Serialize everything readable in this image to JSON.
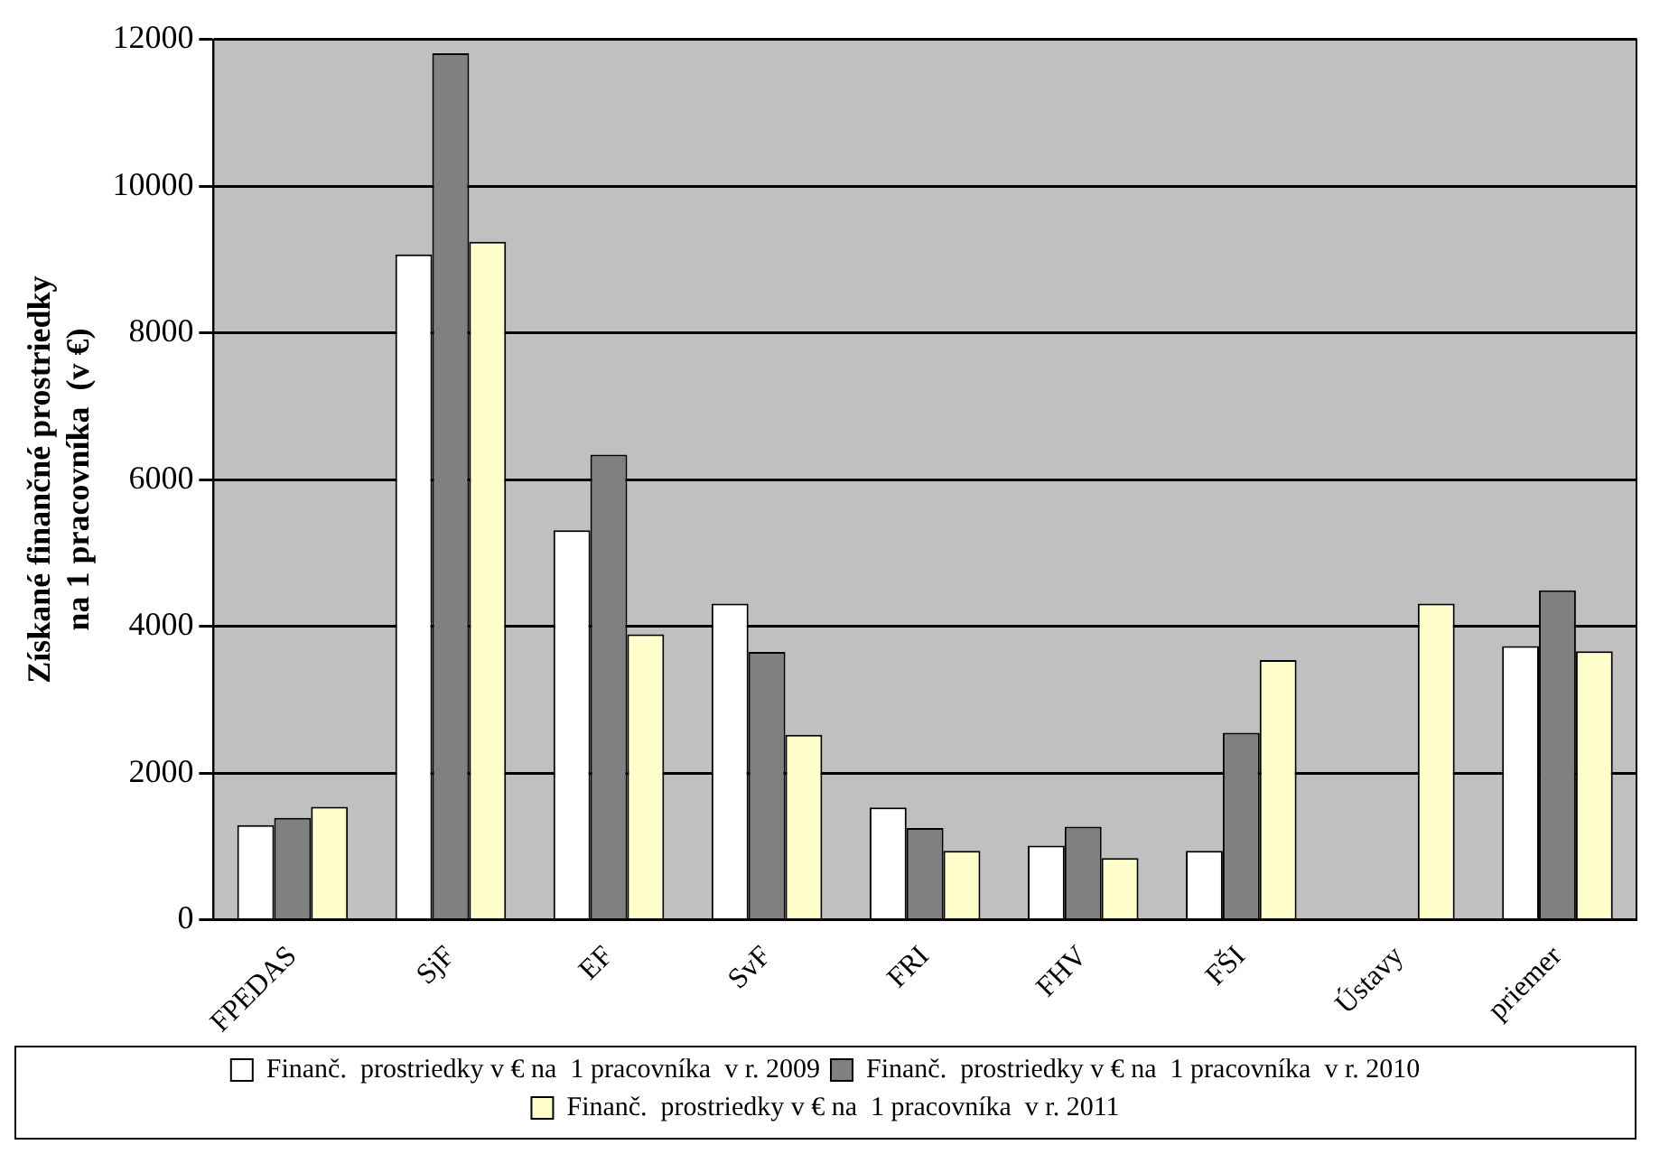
{
  "chart_data": {
    "type": "bar",
    "ylabel": "Získané finančné prostriedky\nna 1 pracovníka  (v €)",
    "categories": [
      "FPEDAS",
      "SjF",
      "EF",
      "SvF",
      "FRI",
      "FHV",
      "FŠI",
      "Ústavy",
      "priemer"
    ],
    "series": [
      {
        "name": "Finanč.  prostriedky v € na  1 pracovníka  v r. 2009",
        "color": "#ffffff",
        "values": [
          1290,
          9070,
          5310,
          4310,
          1530,
          1010,
          940,
          0,
          3730
        ]
      },
      {
        "name": "Finanč.  prostriedky v € na  1 pracovníka  v r. 2010",
        "color": "#808080",
        "values": [
          1390,
          11810,
          6340,
          3650,
          1250,
          1270,
          2550,
          0,
          4490
        ]
      },
      {
        "name": "Finanč.  prostriedky v € na  1 pracovníka  v r. 2011",
        "color": "#ffffcc",
        "values": [
          1540,
          9240,
          3890,
          2520,
          940,
          840,
          3540,
          4310,
          3660
        ]
      }
    ],
    "ylim": [
      0,
      12000
    ],
    "yticks": [
      0,
      2000,
      4000,
      6000,
      8000,
      10000,
      12000
    ],
    "grid": "y",
    "legend": "bottom"
  }
}
